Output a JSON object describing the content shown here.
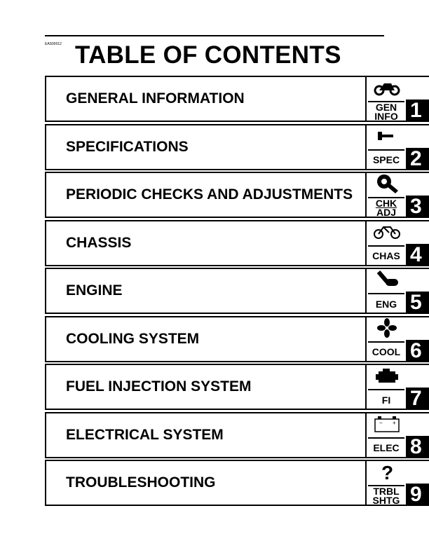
{
  "code": "EAS00012",
  "title": "TABLE OF CONTENTS",
  "sections": [
    {
      "label": "GENERAL INFORMATION",
      "abbr1": "GEN",
      "abbr2": "INFO",
      "num": "1",
      "icon": "motorcycle-icon"
    },
    {
      "label": "SPECIFICATIONS",
      "abbr1": "SPEC",
      "abbr2": "",
      "num": "2",
      "icon": "wrench-icon"
    },
    {
      "label": "PERIODIC CHECKS AND ADJUSTMENTS",
      "abbr1": "CHK",
      "abbr2": "ADJ",
      "num": "3",
      "icon": "spanner-icon"
    },
    {
      "label": "CHASSIS",
      "abbr1": "CHAS",
      "abbr2": "",
      "num": "4",
      "icon": "bike-outline-icon"
    },
    {
      "label": "ENGINE",
      "abbr1": "ENG",
      "abbr2": "",
      "num": "5",
      "icon": "piston-icon"
    },
    {
      "label": "COOLING SYSTEM",
      "abbr1": "COOL",
      "abbr2": "",
      "num": "6",
      "icon": "fan-icon"
    },
    {
      "label": "FUEL INJECTION SYSTEM",
      "abbr1": "FI",
      "abbr2": "",
      "num": "7",
      "icon": "engine-icon"
    },
    {
      "label": "ELECTRICAL SYSTEM",
      "abbr1": "ELEC",
      "abbr2": "",
      "num": "8",
      "icon": "battery-icon"
    },
    {
      "label": "TROUBLESHOOTING",
      "abbr1": "TRBL",
      "abbr2": "SHTG",
      "num": "9",
      "icon": "question-icon"
    }
  ]
}
